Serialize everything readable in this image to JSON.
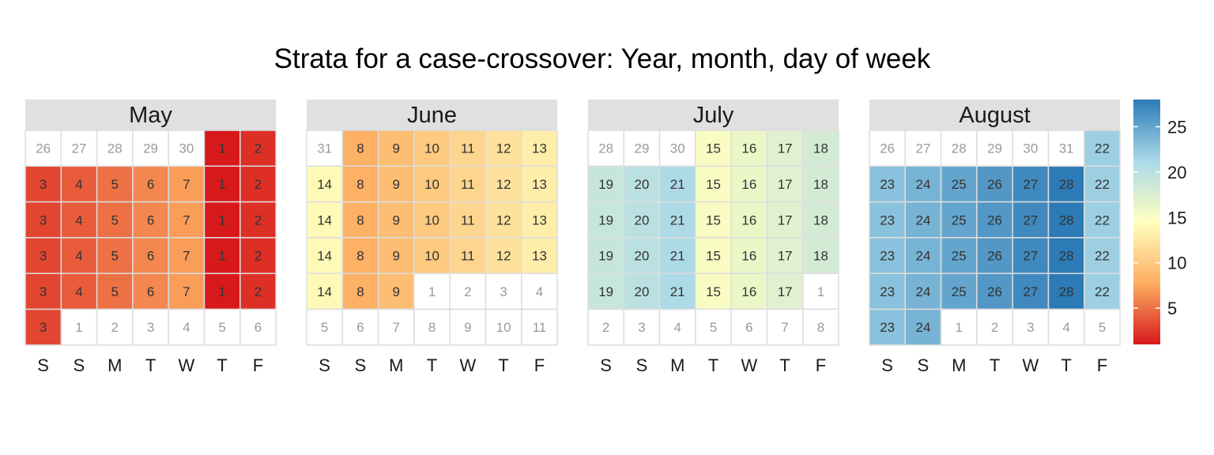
{
  "chart_data": {
    "type": "heatmap",
    "title": "Strata for a case-crossover: Year, month, day of week",
    "day_of_week_labels": [
      "S",
      "S",
      "M",
      "T",
      "W",
      "T",
      "F"
    ],
    "legend": {
      "min": 1,
      "max": 28,
      "ticks": [
        5,
        10,
        15,
        20,
        25
      ],
      "placement": "right",
      "colors": [
        "#d7191c",
        "#fdae61",
        "#ffffbf",
        "#abd9e9",
        "#2c7bb6"
      ]
    },
    "colors": {
      "strip_background": "#e0e0e0",
      "cell_border": "#dddddd",
      "outside_day_text": "#9a9a9a",
      "in_month_text": "#333333"
    },
    "months": [
      {
        "name": "May",
        "cells": [
          [
            {
              "label": "26",
              "stratum": null
            },
            {
              "label": "27",
              "stratum": null
            },
            {
              "label": "28",
              "stratum": null
            },
            {
              "label": "29",
              "stratum": null
            },
            {
              "label": "30",
              "stratum": null
            },
            {
              "label": "1",
              "stratum": 1
            },
            {
              "label": "2",
              "stratum": 2
            }
          ],
          [
            {
              "label": "3",
              "stratum": 3
            },
            {
              "label": "4",
              "stratum": 4
            },
            {
              "label": "5",
              "stratum": 5
            },
            {
              "label": "6",
              "stratum": 6
            },
            {
              "label": "7",
              "stratum": 7
            },
            {
              "label": "1",
              "stratum": 1
            },
            {
              "label": "2",
              "stratum": 2
            }
          ],
          [
            {
              "label": "3",
              "stratum": 3
            },
            {
              "label": "4",
              "stratum": 4
            },
            {
              "label": "5",
              "stratum": 5
            },
            {
              "label": "6",
              "stratum": 6
            },
            {
              "label": "7",
              "stratum": 7
            },
            {
              "label": "1",
              "stratum": 1
            },
            {
              "label": "2",
              "stratum": 2
            }
          ],
          [
            {
              "label": "3",
              "stratum": 3
            },
            {
              "label": "4",
              "stratum": 4
            },
            {
              "label": "5",
              "stratum": 5
            },
            {
              "label": "6",
              "stratum": 6
            },
            {
              "label": "7",
              "stratum": 7
            },
            {
              "label": "1",
              "stratum": 1
            },
            {
              "label": "2",
              "stratum": 2
            }
          ],
          [
            {
              "label": "3",
              "stratum": 3
            },
            {
              "label": "4",
              "stratum": 4
            },
            {
              "label": "5",
              "stratum": 5
            },
            {
              "label": "6",
              "stratum": 6
            },
            {
              "label": "7",
              "stratum": 7
            },
            {
              "label": "1",
              "stratum": 1
            },
            {
              "label": "2",
              "stratum": 2
            }
          ],
          [
            {
              "label": "3",
              "stratum": 3
            },
            {
              "label": "1",
              "stratum": null
            },
            {
              "label": "2",
              "stratum": null
            },
            {
              "label": "3",
              "stratum": null
            },
            {
              "label": "4",
              "stratum": null
            },
            {
              "label": "5",
              "stratum": null
            },
            {
              "label": "6",
              "stratum": null
            }
          ]
        ]
      },
      {
        "name": "June",
        "cells": [
          [
            {
              "label": "31",
              "stratum": null
            },
            {
              "label": "8",
              "stratum": 8
            },
            {
              "label": "9",
              "stratum": 9
            },
            {
              "label": "10",
              "stratum": 10
            },
            {
              "label": "11",
              "stratum": 11
            },
            {
              "label": "12",
              "stratum": 12
            },
            {
              "label": "13",
              "stratum": 13
            }
          ],
          [
            {
              "label": "14",
              "stratum": 14
            },
            {
              "label": "8",
              "stratum": 8
            },
            {
              "label": "9",
              "stratum": 9
            },
            {
              "label": "10",
              "stratum": 10
            },
            {
              "label": "11",
              "stratum": 11
            },
            {
              "label": "12",
              "stratum": 12
            },
            {
              "label": "13",
              "stratum": 13
            }
          ],
          [
            {
              "label": "14",
              "stratum": 14
            },
            {
              "label": "8",
              "stratum": 8
            },
            {
              "label": "9",
              "stratum": 9
            },
            {
              "label": "10",
              "stratum": 10
            },
            {
              "label": "11",
              "stratum": 11
            },
            {
              "label": "12",
              "stratum": 12
            },
            {
              "label": "13",
              "stratum": 13
            }
          ],
          [
            {
              "label": "14",
              "stratum": 14
            },
            {
              "label": "8",
              "stratum": 8
            },
            {
              "label": "9",
              "stratum": 9
            },
            {
              "label": "10",
              "stratum": 10
            },
            {
              "label": "11",
              "stratum": 11
            },
            {
              "label": "12",
              "stratum": 12
            },
            {
              "label": "13",
              "stratum": 13
            }
          ],
          [
            {
              "label": "14",
              "stratum": 14
            },
            {
              "label": "8",
              "stratum": 8
            },
            {
              "label": "9",
              "stratum": 9
            },
            {
              "label": "1",
              "stratum": null
            },
            {
              "label": "2",
              "stratum": null
            },
            {
              "label": "3",
              "stratum": null
            },
            {
              "label": "4",
              "stratum": null
            }
          ],
          [
            {
              "label": "5",
              "stratum": null
            },
            {
              "label": "6",
              "stratum": null
            },
            {
              "label": "7",
              "stratum": null
            },
            {
              "label": "8",
              "stratum": null
            },
            {
              "label": "9",
              "stratum": null
            },
            {
              "label": "10",
              "stratum": null
            },
            {
              "label": "11",
              "stratum": null
            }
          ]
        ]
      },
      {
        "name": "July",
        "cells": [
          [
            {
              "label": "28",
              "stratum": null
            },
            {
              "label": "29",
              "stratum": null
            },
            {
              "label": "30",
              "stratum": null
            },
            {
              "label": "15",
              "stratum": 15
            },
            {
              "label": "16",
              "stratum": 16
            },
            {
              "label": "17",
              "stratum": 17
            },
            {
              "label": "18",
              "stratum": 18
            }
          ],
          [
            {
              "label": "19",
              "stratum": 19
            },
            {
              "label": "20",
              "stratum": 20
            },
            {
              "label": "21",
              "stratum": 21
            },
            {
              "label": "15",
              "stratum": 15
            },
            {
              "label": "16",
              "stratum": 16
            },
            {
              "label": "17",
              "stratum": 17
            },
            {
              "label": "18",
              "stratum": 18
            }
          ],
          [
            {
              "label": "19",
              "stratum": 19
            },
            {
              "label": "20",
              "stratum": 20
            },
            {
              "label": "21",
              "stratum": 21
            },
            {
              "label": "15",
              "stratum": 15
            },
            {
              "label": "16",
              "stratum": 16
            },
            {
              "label": "17",
              "stratum": 17
            },
            {
              "label": "18",
              "stratum": 18
            }
          ],
          [
            {
              "label": "19",
              "stratum": 19
            },
            {
              "label": "20",
              "stratum": 20
            },
            {
              "label": "21",
              "stratum": 21
            },
            {
              "label": "15",
              "stratum": 15
            },
            {
              "label": "16",
              "stratum": 16
            },
            {
              "label": "17",
              "stratum": 17
            },
            {
              "label": "18",
              "stratum": 18
            }
          ],
          [
            {
              "label": "19",
              "stratum": 19
            },
            {
              "label": "20",
              "stratum": 20
            },
            {
              "label": "21",
              "stratum": 21
            },
            {
              "label": "15",
              "stratum": 15
            },
            {
              "label": "16",
              "stratum": 16
            },
            {
              "label": "17",
              "stratum": 17
            },
            {
              "label": "1",
              "stratum": null
            }
          ],
          [
            {
              "label": "2",
              "stratum": null
            },
            {
              "label": "3",
              "stratum": null
            },
            {
              "label": "4",
              "stratum": null
            },
            {
              "label": "5",
              "stratum": null
            },
            {
              "label": "6",
              "stratum": null
            },
            {
              "label": "7",
              "stratum": null
            },
            {
              "label": "8",
              "stratum": null
            }
          ]
        ]
      },
      {
        "name": "August",
        "cells": [
          [
            {
              "label": "26",
              "stratum": null
            },
            {
              "label": "27",
              "stratum": null
            },
            {
              "label": "28",
              "stratum": null
            },
            {
              "label": "29",
              "stratum": null
            },
            {
              "label": "30",
              "stratum": null
            },
            {
              "label": "31",
              "stratum": null
            },
            {
              "label": "22",
              "stratum": 22
            }
          ],
          [
            {
              "label": "23",
              "stratum": 23
            },
            {
              "label": "24",
              "stratum": 24
            },
            {
              "label": "25",
              "stratum": 25
            },
            {
              "label": "26",
              "stratum": 26
            },
            {
              "label": "27",
              "stratum": 27
            },
            {
              "label": "28",
              "stratum": 28
            },
            {
              "label": "22",
              "stratum": 22
            }
          ],
          [
            {
              "label": "23",
              "stratum": 23
            },
            {
              "label": "24",
              "stratum": 24
            },
            {
              "label": "25",
              "stratum": 25
            },
            {
              "label": "26",
              "stratum": 26
            },
            {
              "label": "27",
              "stratum": 27
            },
            {
              "label": "28",
              "stratum": 28
            },
            {
              "label": "22",
              "stratum": 22
            }
          ],
          [
            {
              "label": "23",
              "stratum": 23
            },
            {
              "label": "24",
              "stratum": 24
            },
            {
              "label": "25",
              "stratum": 25
            },
            {
              "label": "26",
              "stratum": 26
            },
            {
              "label": "27",
              "stratum": 27
            },
            {
              "label": "28",
              "stratum": 28
            },
            {
              "label": "22",
              "stratum": 22
            }
          ],
          [
            {
              "label": "23",
              "stratum": 23
            },
            {
              "label": "24",
              "stratum": 24
            },
            {
              "label": "25",
              "stratum": 25
            },
            {
              "label": "26",
              "stratum": 26
            },
            {
              "label": "27",
              "stratum": 27
            },
            {
              "label": "28",
              "stratum": 28
            },
            {
              "label": "22",
              "stratum": 22
            }
          ],
          [
            {
              "label": "23",
              "stratum": 23
            },
            {
              "label": "24",
              "stratum": 24
            },
            {
              "label": "1",
              "stratum": null
            },
            {
              "label": "2",
              "stratum": null
            },
            {
              "label": "3",
              "stratum": null
            },
            {
              "label": "4",
              "stratum": null
            },
            {
              "label": "5",
              "stratum": null
            }
          ]
        ]
      }
    ]
  }
}
